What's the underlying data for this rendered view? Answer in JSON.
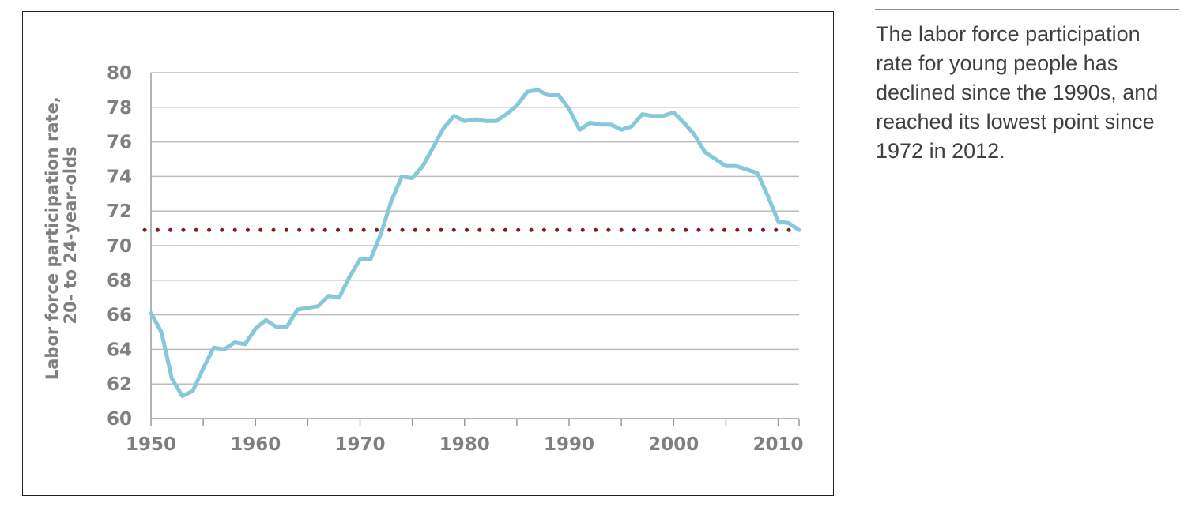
{
  "caption": "The labor force participation rate for young people has declined since the 1990s, and reached its lowest point since 1972 in 2012.",
  "chart_data": {
    "type": "line",
    "title": "",
    "ylabel_line1": "Labor force participation rate,",
    "ylabel_line2": "20- to 24-year-olds",
    "xlabel": "",
    "ylim": [
      60,
      80
    ],
    "xlim": [
      1950,
      2012
    ],
    "yticks": [
      "60",
      "62",
      "64",
      "66",
      "68",
      "70",
      "72",
      "74",
      "76",
      "78",
      "80"
    ],
    "xticks": [
      "1950",
      "1960",
      "1970",
      "1980",
      "1990",
      "2000",
      "2010"
    ],
    "grid": true,
    "reference_line": {
      "y": 70.9,
      "style": "dotted",
      "color": "#7b1f1f"
    },
    "series": [
      {
        "color": "#86c8db",
        "x": [
          1950,
          1951,
          1952,
          1953,
          1954,
          1955,
          1956,
          1957,
          1958,
          1959,
          1960,
          1961,
          1962,
          1963,
          1964,
          1965,
          1966,
          1967,
          1968,
          1969,
          1970,
          1971,
          1972,
          1973,
          1974,
          1975,
          1976,
          1977,
          1978,
          1979,
          1980,
          1981,
          1982,
          1983,
          1984,
          1985,
          1986,
          1987,
          1988,
          1989,
          1990,
          1991,
          1992,
          1993,
          1994,
          1995,
          1996,
          1997,
          1998,
          1999,
          2000,
          2001,
          2002,
          2003,
          2004,
          2005,
          2006,
          2007,
          2008,
          2009,
          2010,
          2011,
          2012
        ],
        "values": [
          66.1,
          65.0,
          62.3,
          61.3,
          61.6,
          62.9,
          64.1,
          64.0,
          64.4,
          64.3,
          65.2,
          65.7,
          65.3,
          65.3,
          66.3,
          66.4,
          66.5,
          67.1,
          67.0,
          68.2,
          69.2,
          69.2,
          70.7,
          72.6,
          74.0,
          73.9,
          74.6,
          75.7,
          76.8,
          77.5,
          77.2,
          77.3,
          77.2,
          77.2,
          77.6,
          78.1,
          78.9,
          79.0,
          78.7,
          78.7,
          77.9,
          76.7,
          77.1,
          77.0,
          77.0,
          76.7,
          76.9,
          77.6,
          77.5,
          77.5,
          77.7,
          77.1,
          76.4,
          75.4,
          75.0,
          74.6,
          74.6,
          74.4,
          74.2,
          72.9,
          71.4,
          71.3,
          70.9
        ]
      }
    ]
  }
}
